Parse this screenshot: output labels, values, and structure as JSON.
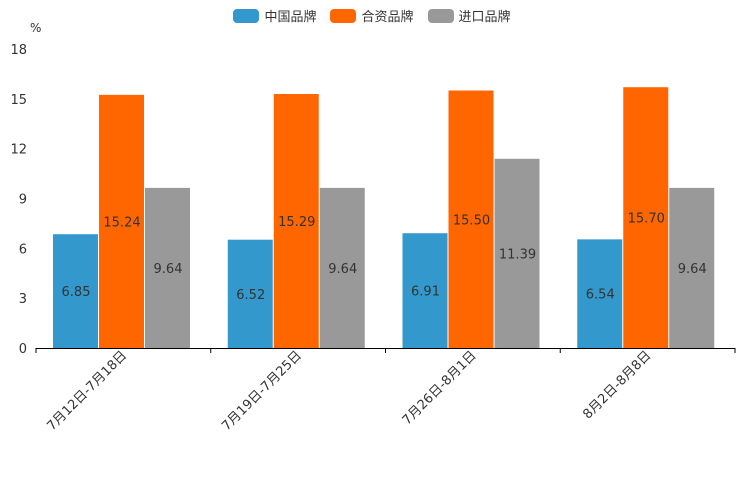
{
  "chart_data": {
    "type": "bar",
    "title": "",
    "unit_label": "%",
    "xlabel": "",
    "ylabel": "%",
    "ylim": [
      0,
      18
    ],
    "yticks": [
      0,
      3,
      6,
      9,
      12,
      15,
      18
    ],
    "categories": [
      "7月12日-7月18日",
      "7月19日-7月25日",
      "7月26日-8月1日",
      "8月2日-8月8日"
    ],
    "series": [
      {
        "name": "中国品牌",
        "color": "#3399cc",
        "values": [
          6.85,
          6.52,
          6.91,
          6.54
        ]
      },
      {
        "name": "合资品牌",
        "color": "#ff6600",
        "values": [
          15.24,
          15.29,
          15.5,
          15.7
        ]
      },
      {
        "name": "进口品牌",
        "color": "#999999",
        "values": [
          9.64,
          9.64,
          11.39,
          9.64
        ]
      }
    ],
    "value_labels": [
      [
        "6.85",
        "6.52",
        "6.91",
        "6.54"
      ],
      [
        "15.24",
        "15.29",
        "15.50",
        "15.70"
      ],
      [
        "9.64",
        "9.64",
        "11.39",
        "9.64"
      ]
    ],
    "legend_position": "top-center",
    "grid": false
  }
}
